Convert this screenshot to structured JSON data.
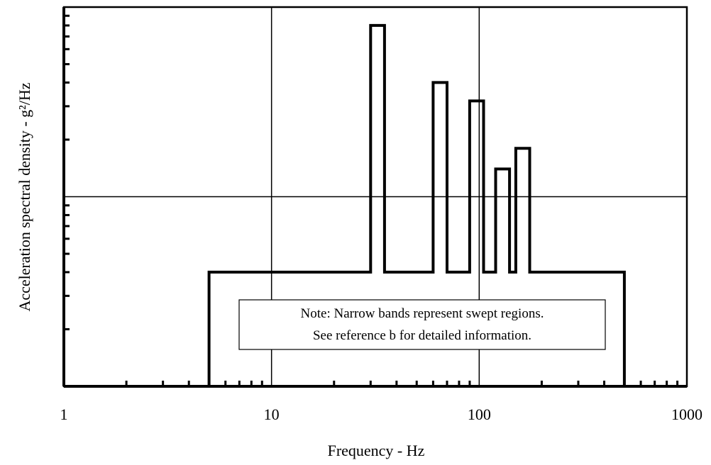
{
  "chart_data": {
    "type": "line",
    "title": "",
    "xlabel": "Frequency - Hz",
    "ylabel": "Acceleration spectral density - g²/Hz",
    "x_scale": "log",
    "y_scale": "log",
    "xlim": [
      1,
      1000
    ],
    "ylim": [
      0.001,
      0.1
    ],
    "x_tick_labels": [
      "1",
      "10",
      "100",
      "1000"
    ],
    "y_tick_labels": [],
    "grid": true,
    "series": [
      {
        "x": [
          5,
          5,
          30,
          30,
          35,
          35,
          60,
          60,
          70,
          70,
          90,
          90,
          105,
          105,
          120,
          120,
          140,
          140,
          150,
          150,
          175,
          175,
          500,
          500
        ],
        "y": [
          0.001,
          0.004,
          0.004,
          0.08,
          0.08,
          0.004,
          0.004,
          0.04,
          0.04,
          0.004,
          0.004,
          0.032,
          0.032,
          0.004,
          0.004,
          0.014,
          0.014,
          0.004,
          0.004,
          0.018,
          0.018,
          0.004,
          0.004,
          0.001
        ]
      }
    ],
    "annotations": [
      "Note: Narrow bands represent swept regions.",
      "See reference b for detailed information."
    ]
  }
}
